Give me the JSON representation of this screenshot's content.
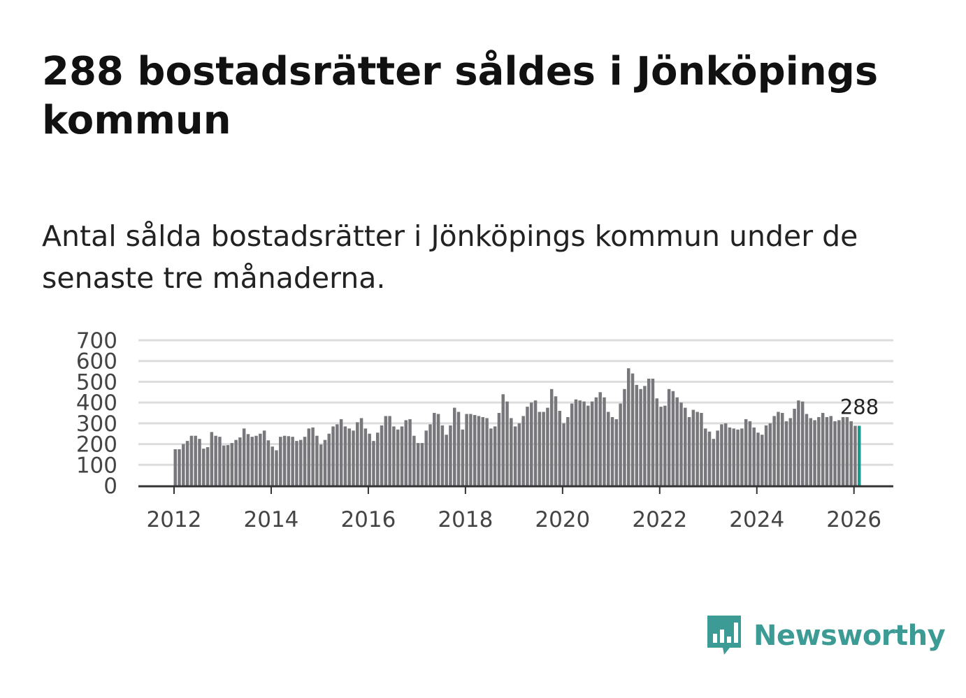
{
  "title": "288 bostadsrätter såldes i Jönköpings kommun",
  "subtitle": "Antal sålda bostadsrätter i Jönköpings kommun under de senaste tre månaderna.",
  "brand": {
    "name": "Newsworthy",
    "color": "#3c9c95",
    "icon": "newsworthy-logo-icon"
  },
  "colors": {
    "bar": "#77777c",
    "highlight": "#1a9a8e",
    "grid": "#dddddd",
    "axis": "#333333"
  },
  "chart_data": {
    "type": "bar",
    "title": "Antal sålda bostadsrätter i Jönköpings kommun",
    "xlabel": "",
    "ylabel": "",
    "ylim": [
      0,
      700
    ],
    "yticks": [
      "0",
      "100",
      "200",
      "300",
      "400",
      "500",
      "600",
      "700"
    ],
    "xticks": [
      "2012",
      "2014",
      "2016",
      "2018",
      "2020",
      "2022",
      "2024",
      "2026"
    ],
    "start": {
      "year": 2012,
      "month": 1
    },
    "highlight_label": "288",
    "values": [
      175,
      175,
      200,
      215,
      240,
      240,
      225,
      178,
      185,
      258,
      240,
      235,
      193,
      195,
      205,
      220,
      232,
      275,
      248,
      235,
      240,
      250,
      265,
      218,
      188,
      170,
      235,
      240,
      238,
      235,
      215,
      220,
      235,
      275,
      280,
      240,
      198,
      220,
      250,
      285,
      295,
      320,
      285,
      275,
      265,
      305,
      325,
      275,
      250,
      215,
      255,
      290,
      335,
      335,
      285,
      270,
      285,
      315,
      320,
      240,
      205,
      205,
      265,
      295,
      350,
      345,
      290,
      245,
      290,
      375,
      355,
      270,
      345,
      345,
      340,
      335,
      330,
      325,
      275,
      285,
      350,
      440,
      405,
      325,
      285,
      300,
      335,
      380,
      400,
      410,
      355,
      355,
      375,
      465,
      430,
      360,
      300,
      330,
      395,
      415,
      410,
      405,
      385,
      405,
      425,
      450,
      425,
      355,
      330,
      320,
      395,
      465,
      565,
      540,
      485,
      465,
      480,
      515,
      515,
      420,
      380,
      385,
      465,
      455,
      425,
      400,
      375,
      330,
      365,
      355,
      350,
      275,
      260,
      225,
      265,
      295,
      300,
      280,
      275,
      270,
      275,
      320,
      310,
      280,
      255,
      245,
      290,
      300,
      335,
      355,
      350,
      310,
      325,
      370,
      410,
      405,
      345,
      325,
      315,
      330,
      350,
      330,
      335,
      310,
      315,
      330,
      330,
      310,
      288,
      288
    ],
    "highlight_count": 1
  }
}
